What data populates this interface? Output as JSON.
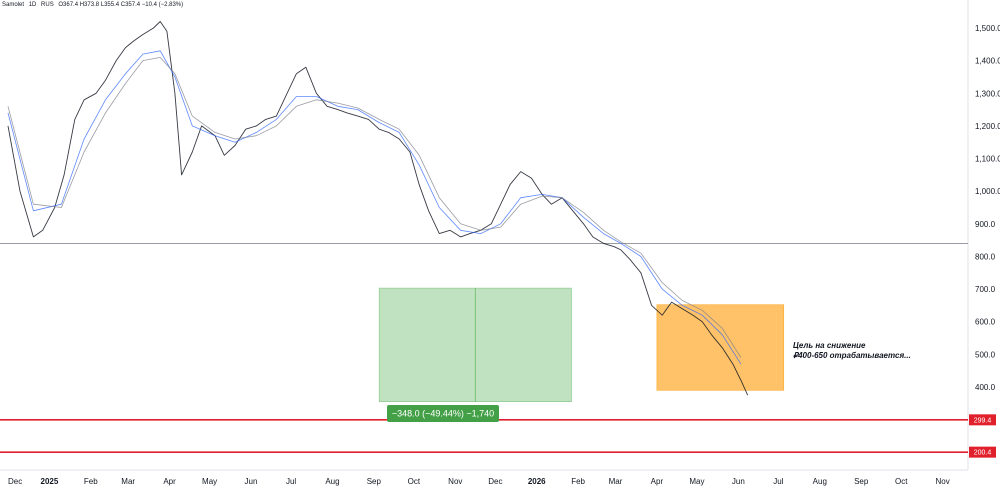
{
  "header": {
    "symbol": "Samolet",
    "interval": "1D",
    "exchange": "RUS",
    "ohlc": "O367.4 H373.8 L355.4 C357.4 −10.4 (−2.83%)"
  },
  "annotation": {
    "line1": "Цель на снижение",
    "line2": "₽400-650 отрабатывается..."
  },
  "measure_label": "−348.0 (−49.44%) −1,740",
  "colors": {
    "price": "#131722",
    "ma_fast": "#2962ff",
    "ma_slow": "#787b86",
    "support": "#e0202a",
    "target_box": "#ffb74d",
    "measure_box": "#a5d6a7",
    "measure_badge": "#43a047"
  },
  "chart_data": {
    "type": "line",
    "x_ticks": [
      "Dec",
      "2025",
      "Feb",
      "Mar",
      "Apr",
      "May",
      "Jun",
      "Jul",
      "Aug",
      "Sep",
      "Oct",
      "Nov",
      "Dec",
      "2026",
      "Feb",
      "Mar",
      "Apr",
      "May",
      "Jun",
      "Jul",
      "Aug",
      "Sep",
      "Oct",
      "Nov"
    ],
    "y_ticks": [
      "400.0",
      "500.0",
      "600.0",
      "700.0",
      "800.0",
      "900.0",
      "1,000.0",
      "1,100.0",
      "1,200.0",
      "1,300.0",
      "1,400.0",
      "1,500.0"
    ],
    "ylim": [
      185,
      1560
    ],
    "log_scale": false,
    "grid": false,
    "series": [
      {
        "x": [
          "2024-12-01",
          "2024-12-10",
          "2024-12-20",
          "2024-12-27",
          "2025-01-05",
          "2025-01-12",
          "2025-01-20",
          "2025-01-27",
          "2025-02-05",
          "2025-02-12",
          "2025-02-20",
          "2025-02-27",
          "2025-03-05",
          "2025-03-12",
          "2025-03-20",
          "2025-03-25",
          "2025-03-30",
          "2025-04-05",
          "2025-04-10",
          "2025-04-18",
          "2025-04-25",
          "2025-05-05",
          "2025-05-12",
          "2025-05-20",
          "2025-05-28",
          "2025-06-05",
          "2025-06-12",
          "2025-06-20",
          "2025-06-28",
          "2025-07-05",
          "2025-07-12",
          "2025-07-20",
          "2025-07-28",
          "2025-08-05",
          "2025-08-12",
          "2025-08-20",
          "2025-08-28",
          "2025-09-05",
          "2025-09-12",
          "2025-09-20",
          "2025-09-28",
          "2025-10-05",
          "2025-10-12",
          "2025-10-20",
          "2025-10-28",
          "2025-11-05",
          "2025-11-12",
          "2025-11-20",
          "2025-11-28",
          "2025-12-05",
          "2025-12-12",
          "2025-12-20",
          "2025-12-28",
          "2026-01-05",
          "2026-01-12",
          "2026-01-20",
          "2026-01-28",
          "2026-02-05",
          "2026-02-12",
          "2026-02-20",
          "2026-02-28",
          "2026-03-05",
          "2026-03-12",
          "2026-03-20",
          "2026-03-28",
          "2026-04-05",
          "2026-04-12",
          "2026-04-20",
          "2026-04-28",
          "2026-05-05",
          "2026-05-12",
          "2026-05-20",
          "2026-05-28",
          "2026-06-03",
          "2026-06-08"
        ],
        "values": [
          1200,
          1000,
          860,
          880,
          950,
          1050,
          1220,
          1280,
          1300,
          1340,
          1400,
          1440,
          1460,
          1480,
          1500,
          1520,
          1490,
          1300,
          1050,
          1120,
          1200,
          1170,
          1110,
          1140,
          1190,
          1200,
          1220,
          1230,
          1300,
          1360,
          1380,
          1300,
          1260,
          1250,
          1240,
          1230,
          1220,
          1190,
          1180,
          1160,
          1120,
          1020,
          940,
          870,
          880,
          860,
          870,
          880,
          900,
          960,
          1020,
          1060,
          1040,
          990,
          960,
          980,
          940,
          900,
          860,
          840,
          830,
          820,
          790,
          750,
          650,
          620,
          660,
          640,
          620,
          600,
          560,
          520,
          470,
          420,
          375
        ]
      },
      {
        "x": [
          "2024-12-01",
          "2024-12-20",
          "2025-01-10",
          "2025-01-27",
          "2025-02-12",
          "2025-02-27",
          "2025-03-12",
          "2025-03-25",
          "2025-04-05",
          "2025-04-18",
          "2025-05-05",
          "2025-05-20",
          "2025-06-05",
          "2025-06-20",
          "2025-07-05",
          "2025-07-20",
          "2025-08-05",
          "2025-08-20",
          "2025-09-05",
          "2025-09-20",
          "2025-10-05",
          "2025-10-20",
          "2025-11-05",
          "2025-11-20",
          "2025-12-05",
          "2025-12-20",
          "2026-01-05",
          "2026-01-20",
          "2026-02-05",
          "2026-02-20",
          "2026-03-05",
          "2026-03-20",
          "2026-04-05",
          "2026-04-20",
          "2026-05-05",
          "2026-05-20",
          "2026-06-03"
        ],
        "values": [
          1240,
          940,
          960,
          1160,
          1280,
          1360,
          1420,
          1430,
          1350,
          1200,
          1170,
          1150,
          1180,
          1220,
          1290,
          1290,
          1260,
          1250,
          1210,
          1180,
          1080,
          950,
          880,
          870,
          900,
          980,
          990,
          980,
          920,
          870,
          840,
          800,
          700,
          650,
          620,
          560,
          470
        ]
      },
      {
        "x": [
          "2024-12-01",
          "2024-12-20",
          "2025-01-10",
          "2025-01-27",
          "2025-02-12",
          "2025-02-27",
          "2025-03-12",
          "2025-03-25",
          "2025-04-05",
          "2025-04-18",
          "2025-05-05",
          "2025-05-20",
          "2025-06-05",
          "2025-06-20",
          "2025-07-05",
          "2025-07-20",
          "2025-08-05",
          "2025-08-20",
          "2025-09-05",
          "2025-09-20",
          "2025-10-05",
          "2025-10-20",
          "2025-11-05",
          "2025-11-20",
          "2025-12-05",
          "2025-12-20",
          "2026-01-05",
          "2026-01-20",
          "2026-02-05",
          "2026-02-20",
          "2026-03-05",
          "2026-03-20",
          "2026-04-05",
          "2026-04-20",
          "2026-05-05",
          "2026-05-20",
          "2026-06-03"
        ],
        "values": [
          1260,
          960,
          950,
          1120,
          1240,
          1330,
          1400,
          1410,
          1360,
          1230,
          1180,
          1160,
          1170,
          1200,
          1260,
          1280,
          1270,
          1255,
          1220,
          1190,
          1110,
          980,
          900,
          880,
          890,
          960,
          985,
          980,
          935,
          880,
          845,
          810,
          720,
          665,
          635,
          580,
          490
        ]
      }
    ],
    "horizontal_lines": [
      {
        "value": 840
      },
      {
        "value": 299.4,
        "label": "299.4"
      },
      {
        "value": 200.4,
        "label": "200.4"
      }
    ],
    "boxes": [
      {
        "name": "measure",
        "x0": "2025-09-05",
        "x1": "2026-01-27",
        "y0": 355,
        "y1": 703
      },
      {
        "name": "target",
        "x0": "2026-04-01",
        "x1": "2026-07-05",
        "y0": 390,
        "y1": 652
      }
    ]
  }
}
